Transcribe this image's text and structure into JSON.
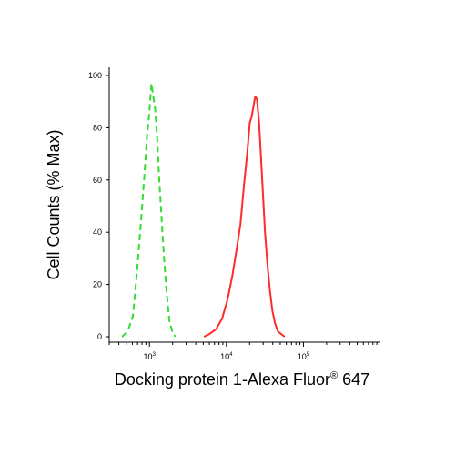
{
  "chart_data": {
    "type": "line",
    "xlabel": "Docking protein 1-Alexa Fluor",
    "xlabel_mark": "®",
    "xlabel_suffix": " 647",
    "ylabel": "Cell Counts (% Max)",
    "xscale": "log",
    "xlim": [
      300,
      1000000.0
    ],
    "ylim": [
      0,
      100
    ],
    "x_major_ticks": [
      {
        "value": 1000,
        "base": "10",
        "exp": "3"
      },
      {
        "value": 10000,
        "base": "10",
        "exp": "4"
      },
      {
        "value": 100000,
        "base": "10",
        "exp": "5"
      }
    ],
    "y_ticks": [
      {
        "value": 0,
        "label": "0"
      },
      {
        "value": 20,
        "label": "20"
      },
      {
        "value": 40,
        "label": "40"
      },
      {
        "value": 60,
        "label": "60"
      },
      {
        "value": 80,
        "label": "80"
      },
      {
        "value": 100,
        "label": "100"
      }
    ],
    "grid": false,
    "series": [
      {
        "color": "#33dd33",
        "style": "dashed",
        "x": [
          440,
          520,
          610,
          690,
          780,
          860,
          930,
          990,
          1060,
          1120,
          1190,
          1260,
          1340,
          1440,
          1550,
          1680,
          1820,
          1980,
          2160
        ],
        "y": [
          0,
          2,
          8,
          25,
          45,
          62,
          77,
          85,
          97,
          92,
          87,
          76,
          60,
          45,
          30,
          16,
          6,
          2,
          0
        ]
      },
      {
        "color": "#ff2a2a",
        "style": "solid",
        "x": [
          5100,
          6000,
          7400,
          8800,
          10300,
          11900,
          13500,
          15200,
          16900,
          18600,
          20100,
          21200,
          22400,
          23700,
          24900,
          26400,
          28000,
          29800,
          31700,
          34000,
          36600,
          39500,
          42900,
          46800,
          51500,
          57000
        ],
        "y": [
          0,
          1,
          3,
          7,
          14,
          23,
          33,
          43,
          58,
          70,
          82,
          84,
          88,
          92,
          91,
          83,
          70,
          55,
          40,
          28,
          18,
          10,
          5,
          2,
          1,
          0
        ]
      }
    ]
  }
}
